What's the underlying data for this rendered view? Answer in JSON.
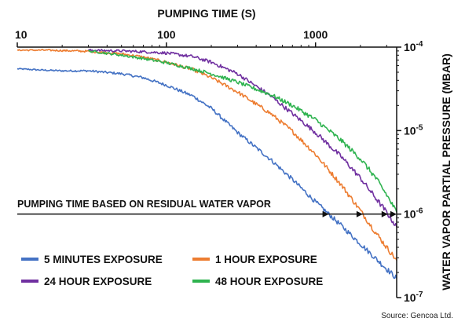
{
  "chart_data": {
    "type": "line",
    "title": "",
    "xlabel": "PUMPING TIME (S)",
    "ylabel": "WATER VAPOR PARTIAL PRESSURE (MBAR)",
    "x_scale": "log",
    "y_scale": "log",
    "xlim": [
      10,
      3500
    ],
    "ylim": [
      1e-07,
      0.0001
    ],
    "x_ticks": [
      {
        "value": 10,
        "label": "10"
      },
      {
        "value": 100,
        "label": "100"
      },
      {
        "value": 1000,
        "label": "1000"
      }
    ],
    "y_ticks": [
      {
        "value": 0.0001,
        "base": "10",
        "exp": "-4"
      },
      {
        "value": 1e-05,
        "base": "10",
        "exp": "-5"
      },
      {
        "value": 1e-06,
        "base": "10",
        "exp": "-6"
      },
      {
        "value": 1e-07,
        "base": "10",
        "exp": "-7"
      }
    ],
    "grid": false,
    "legend_position": "bottom-left",
    "annotation": {
      "text": "PUMPING TIME BASED ON RESIDUAL WATER VAPOR",
      "y": 1e-06
    },
    "series": [
      {
        "name": "5 MINUTES EXPOSURE",
        "color": "#4472c4",
        "x": [
          10,
          15,
          20,
          30,
          50,
          70,
          100,
          150,
          200,
          300,
          500,
          700,
          1000,
          1500,
          2000,
          2500,
          3000,
          3500
        ],
        "y": [
          5.5e-05,
          5.3e-05,
          5.2e-05,
          5.2e-05,
          4.8e-05,
          4.3e-05,
          3.5e-05,
          2.6e-05,
          1.85e-05,
          9.5e-06,
          4.5e-06,
          2.6e-06,
          1.4e-06,
          7.2e-07,
          4.4e-07,
          3e-07,
          2.2e-07,
          1.7e-07
        ]
      },
      {
        "name": "1 HOUR EXPOSURE",
        "color": "#ed7d31",
        "x": [
          10,
          15,
          20,
          30,
          50,
          70,
          100,
          150,
          200,
          300,
          500,
          700,
          1000,
          1500,
          2000,
          2500,
          3000,
          3500
        ],
        "y": [
          9.2e-05,
          9.2e-05,
          9.1e-05,
          8.9e-05,
          8.3e-05,
          7.6e-05,
          6.6e-05,
          5.4e-05,
          4.3e-05,
          2.9e-05,
          1.6e-05,
          9.8e-06,
          5.2e-06,
          2.2e-06,
          1.1e-06,
          6.2e-07,
          4e-07,
          2.8e-07
        ]
      },
      {
        "name": "24 HOUR EXPOSURE",
        "color": "#7030a0",
        "x": [
          30,
          50,
          70,
          100,
          150,
          200,
          300,
          500,
          700,
          1000,
          1500,
          2000,
          2500,
          3000,
          3500
        ],
        "y": [
          9.2e-05,
          9e-05,
          8.8e-05,
          8.5e-05,
          7.7e-05,
          6.6e-05,
          4.8e-05,
          2.6e-05,
          1.6e-05,
          9.5e-06,
          4.8e-06,
          2.7e-06,
          1.6e-06,
          1.05e-06,
          7e-07
        ]
      },
      {
        "name": "48 HOUR EXPOSURE",
        "color": "#2eb34f",
        "x": [
          30,
          50,
          70,
          100,
          150,
          200,
          300,
          500,
          700,
          1000,
          1500,
          2000,
          2500,
          3000,
          3500
        ],
        "y": [
          9e-05,
          8e-05,
          7.3e-05,
          6.5e-05,
          5.5e-05,
          4.8e-05,
          3.8e-05,
          2.7e-05,
          2e-05,
          1.35e-05,
          7.5e-06,
          4.6e-06,
          2.8e-06,
          1.7e-06,
          1.05e-06
        ]
      }
    ],
    "source": "Source: Gencoa Ltd."
  }
}
